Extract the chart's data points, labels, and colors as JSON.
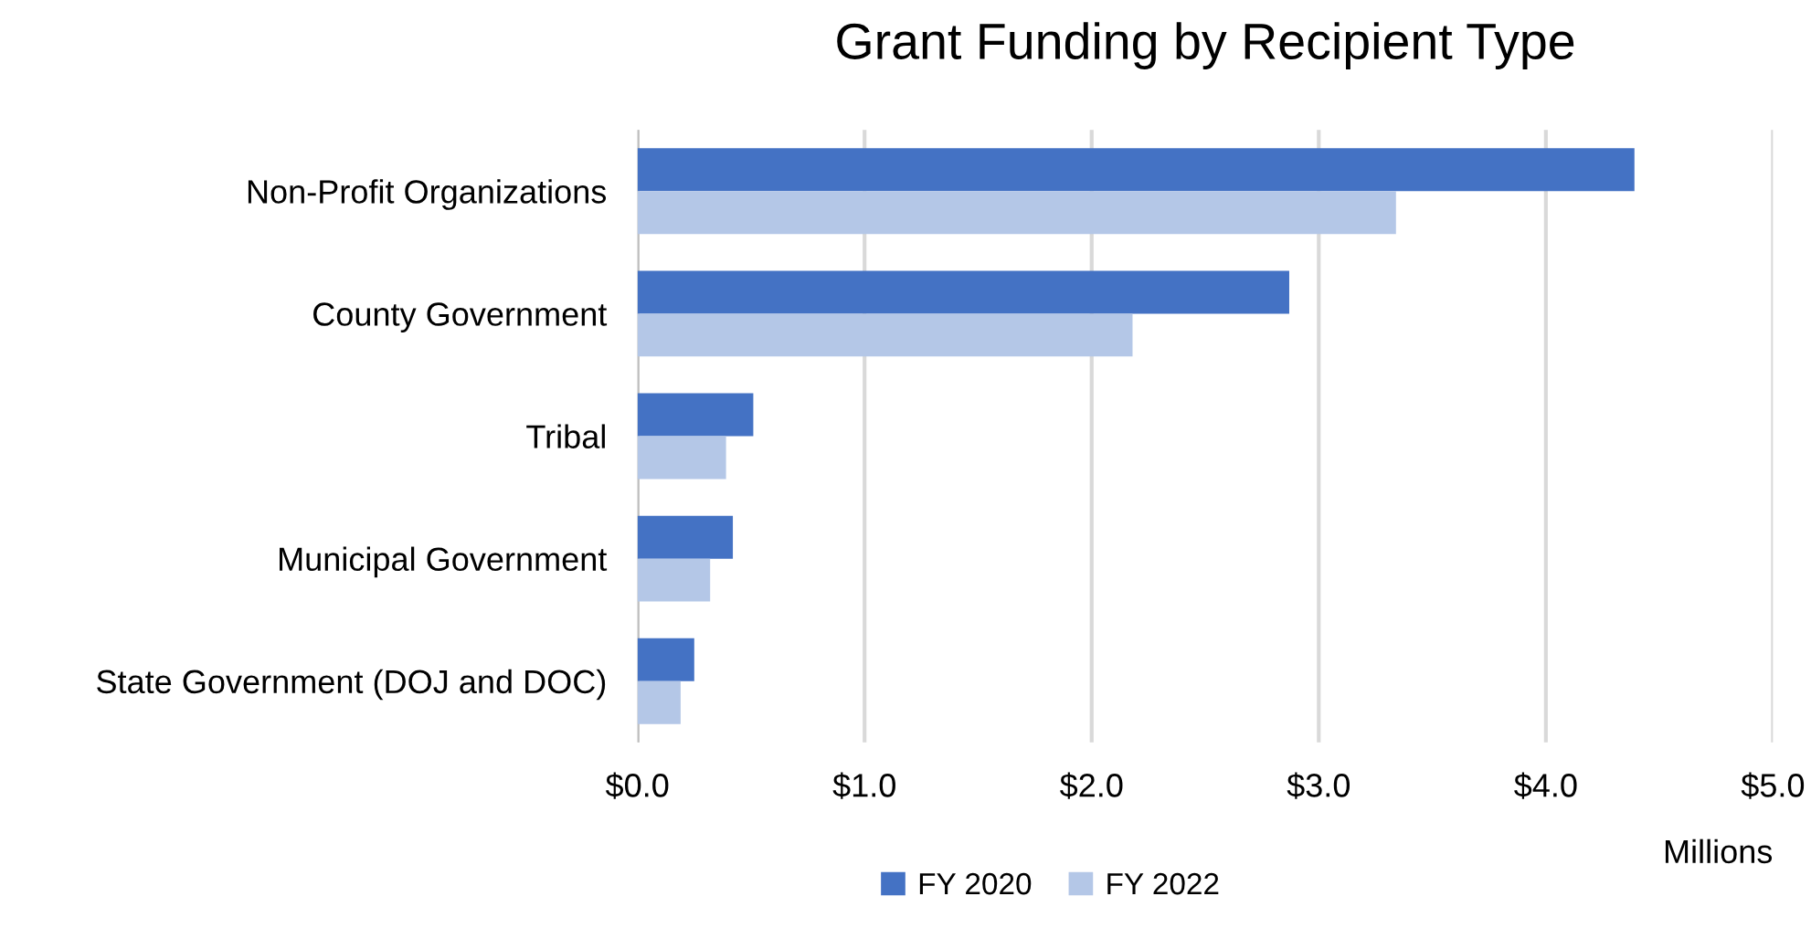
{
  "chart_data": {
    "type": "bar",
    "orientation": "horizontal",
    "title": "Grant Funding by Recipient Type",
    "xlabel": "Millions",
    "categories": [
      "Non-Profit Organizations",
      "County Government",
      "Tribal",
      "Municipal Government",
      "State Government (DOJ and DOC)"
    ],
    "series": [
      {
        "name": "FY 2020",
        "color": "#4472c4",
        "values": [
          4.39,
          2.87,
          0.51,
          0.42,
          0.25
        ]
      },
      {
        "name": "FY 2022",
        "color": "#b4c7e7",
        "values": [
          3.34,
          2.18,
          0.39,
          0.32,
          0.19
        ]
      }
    ],
    "xlim": [
      0,
      5
    ],
    "xticks": [
      {
        "value": 0,
        "label": "$0.0"
      },
      {
        "value": 1,
        "label": "$1.0"
      },
      {
        "value": 2,
        "label": "$2.0"
      },
      {
        "value": 3,
        "label": "$3.0"
      },
      {
        "value": 4,
        "label": "$4.0"
      },
      {
        "value": 5,
        "label": "$5.0"
      }
    ],
    "grid": "x",
    "legend": "bottom"
  }
}
